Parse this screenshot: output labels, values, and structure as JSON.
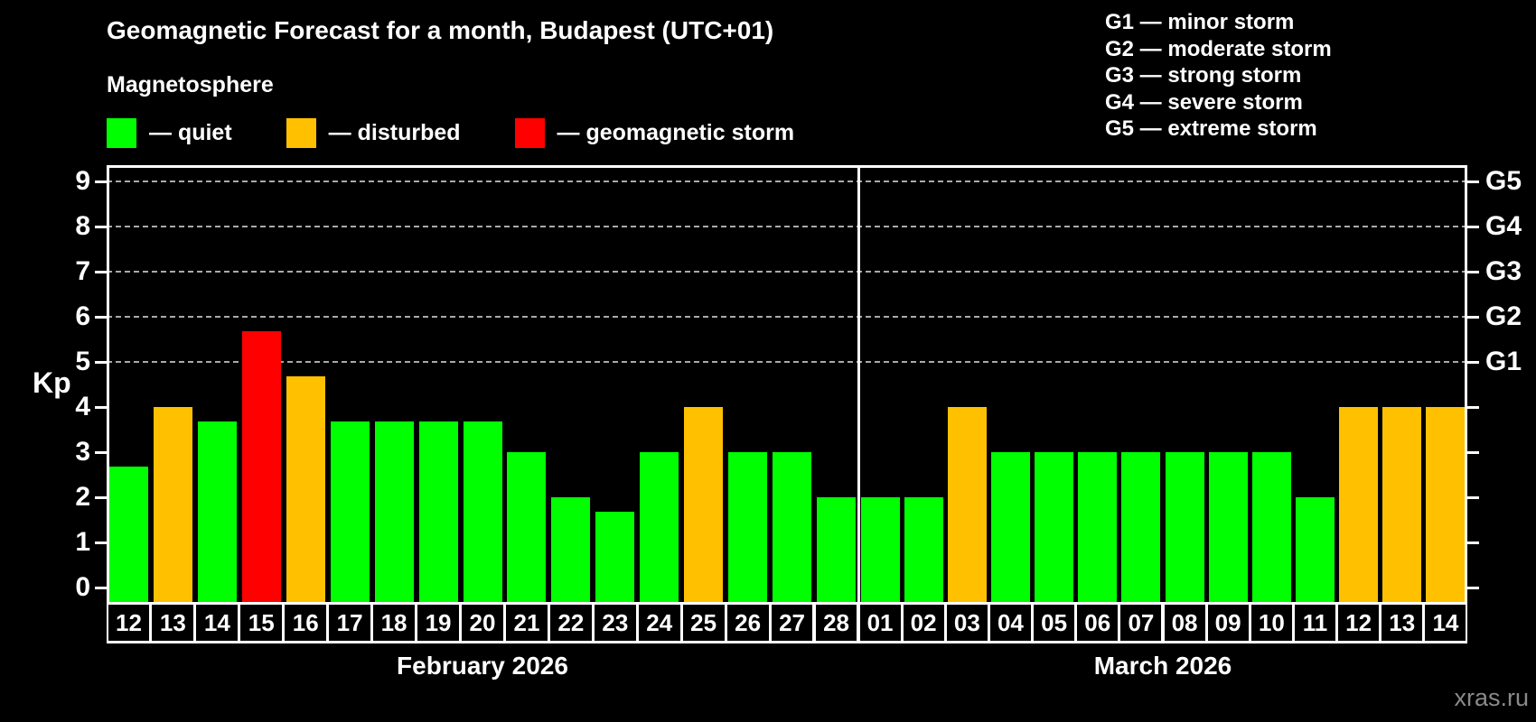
{
  "header": {
    "title": "Geomagnetic Forecast for a month, Budapest (UTC+01)",
    "subtitle": "Magnetosphere",
    "legend_items": [
      {
        "name": "quiet",
        "label": "— quiet",
        "color": "#00ff00"
      },
      {
        "name": "disturbed",
        "label": "— disturbed",
        "color": "#ffc000"
      },
      {
        "name": "storm",
        "label": "— geomagnetic storm",
        "color": "#ff0000"
      }
    ],
    "g_legend": [
      {
        "label": "G1 — minor storm"
      },
      {
        "label": "G2 — moderate storm"
      },
      {
        "label": "G3 — strong storm"
      },
      {
        "label": "G4 — severe storm"
      },
      {
        "label": "G5 — extreme storm"
      }
    ]
  },
  "chart_data": {
    "type": "bar",
    "ylabel": "Kp",
    "ylim": [
      0,
      9.68
    ],
    "y_ticks": [
      0,
      1,
      2,
      3,
      4,
      5,
      6,
      7,
      8,
      9
    ],
    "gridlines_at": [
      5,
      6,
      7,
      8,
      9
    ],
    "grid": true,
    "right_axis": [
      {
        "kp": 5,
        "label": "G1"
      },
      {
        "kp": 6,
        "label": "G2"
      },
      {
        "kp": 7,
        "label": "G3"
      },
      {
        "kp": 8,
        "label": "G4"
      },
      {
        "kp": 9,
        "label": "G5"
      }
    ],
    "status_colors": {
      "quiet": "#00ff00",
      "disturbed": "#ffc000",
      "storm": "#ff0000"
    },
    "groups": [
      {
        "label": "February 2026",
        "days": [
          "12",
          "13",
          "14",
          "15",
          "16",
          "17",
          "18",
          "19",
          "20",
          "21",
          "22",
          "23",
          "24",
          "25",
          "26",
          "27",
          "28"
        ],
        "values": [
          2.67,
          4,
          3.67,
          5.67,
          4.67,
          3.67,
          3.67,
          3.67,
          3.67,
          3,
          2,
          1.67,
          3,
          4,
          3,
          3,
          2
        ],
        "status": [
          "quiet",
          "disturbed",
          "quiet",
          "storm",
          "disturbed",
          "quiet",
          "quiet",
          "quiet",
          "quiet",
          "quiet",
          "quiet",
          "quiet",
          "quiet",
          "disturbed",
          "quiet",
          "quiet",
          "quiet"
        ]
      },
      {
        "label": "March 2026",
        "days": [
          "01",
          "02",
          "03",
          "04",
          "05",
          "06",
          "07",
          "08",
          "09",
          "10",
          "11",
          "12",
          "13",
          "14"
        ],
        "values": [
          2,
          2,
          4,
          3,
          3,
          3,
          3,
          3,
          3,
          3,
          2,
          4,
          4,
          4
        ],
        "status": [
          "quiet",
          "quiet",
          "disturbed",
          "quiet",
          "quiet",
          "quiet",
          "quiet",
          "quiet",
          "quiet",
          "quiet",
          "quiet",
          "disturbed",
          "disturbed",
          "disturbed"
        ]
      }
    ]
  },
  "watermark": "xras.ru",
  "colors": {
    "background": "#000000",
    "text": "#ffffff",
    "grid": "#aaaaaa",
    "axis": "#ffffff",
    "watermark": "#8a8a8a"
  }
}
